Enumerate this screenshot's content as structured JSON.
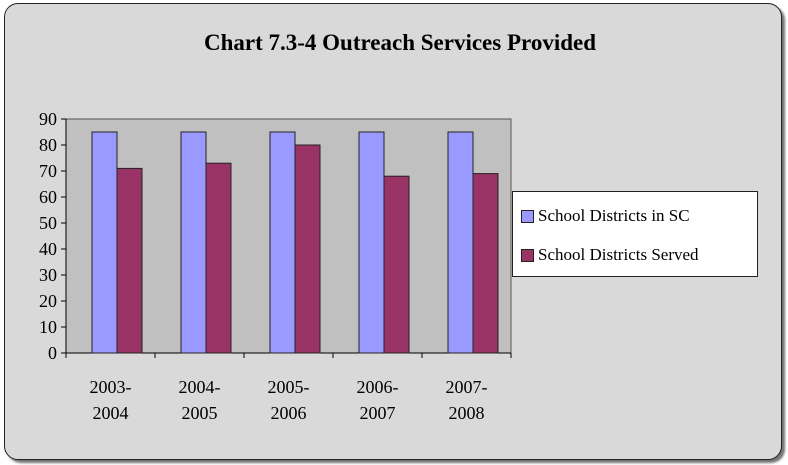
{
  "chart_data": {
    "type": "bar",
    "title": "Chart 7.3-4 Outreach Services Provided",
    "xlabel": "",
    "ylabel": "",
    "categories": [
      [
        "2003-",
        "2004"
      ],
      [
        "2004-",
        "2005"
      ],
      [
        "2005-",
        "2006"
      ],
      [
        "2006-",
        "2007"
      ],
      [
        "2007-",
        "2008"
      ]
    ],
    "series": [
      {
        "name": "School Districts in SC",
        "color": "#9999ff",
        "values": [
          85,
          85,
          85,
          85,
          85
        ]
      },
      {
        "name": "School Districts Served",
        "color": "#993366",
        "values": [
          71,
          73,
          80,
          68,
          69
        ]
      }
    ],
    "ylim": [
      0,
      90
    ],
    "yticks": [
      0,
      10,
      20,
      30,
      40,
      50,
      60,
      70,
      80,
      90
    ],
    "grid": false,
    "legend_position": "right"
  }
}
